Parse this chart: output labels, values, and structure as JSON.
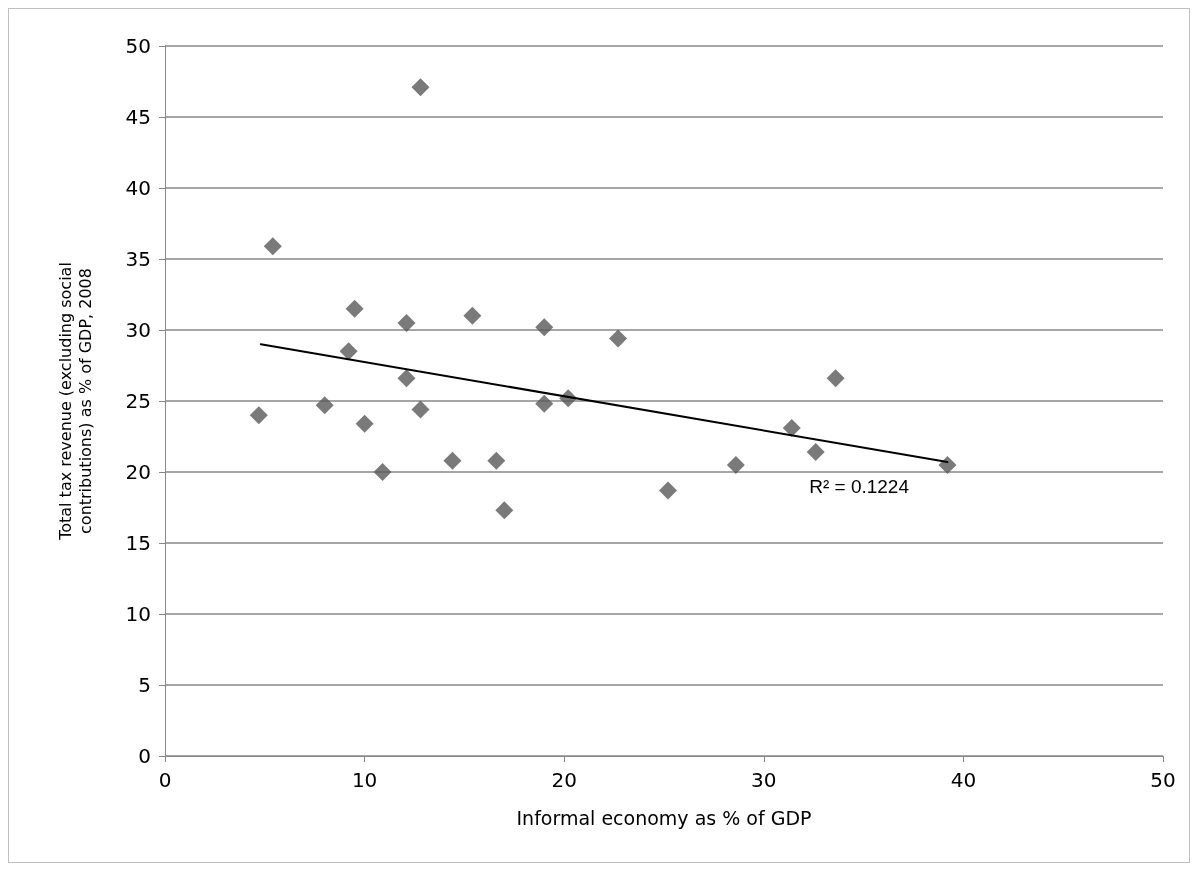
{
  "chart_data": {
    "type": "scatter",
    "xlabel": "Informal economy as % of GDP",
    "ylabel": "Total tax revenue (excluding social\ncontributions) as % of GDP, 2008",
    "xlim": [
      0,
      50
    ],
    "xticks": [
      0,
      10,
      20,
      30,
      40,
      50
    ],
    "ylim": [
      0,
      50
    ],
    "yticks": [
      0,
      5,
      10,
      15,
      20,
      25,
      30,
      35,
      40,
      45,
      50
    ],
    "grid": "y",
    "marker": "diamond",
    "series": [
      {
        "color": "#595959",
        "x": [
          12.8,
          5.4,
          9.5,
          12.1,
          15.4,
          19.0,
          22.7,
          9.2,
          12.1,
          4.7,
          8.0,
          10.0,
          12.8,
          19.0,
          20.2,
          33.6,
          31.4,
          32.6,
          16.6,
          28.6,
          39.2,
          25.2,
          17.0,
          14.4,
          10.9
        ],
        "values": [
          47.1,
          35.9,
          31.5,
          30.5,
          31.0,
          30.2,
          29.4,
          28.5,
          26.6,
          24.0,
          24.7,
          23.4,
          24.4,
          24.8,
          25.2,
          26.6,
          23.1,
          21.4,
          20.8,
          20.5,
          20.5,
          18.7,
          17.3,
          20.8,
          20.0
        ]
      },
      {
        "type": "line",
        "color": "#000000",
        "marker": "none",
        "x": [
          4.8,
          39.2
        ],
        "values": [
          29.0,
          20.7
        ]
      }
    ],
    "annotations": [
      "R² = 0.1224"
    ]
  }
}
